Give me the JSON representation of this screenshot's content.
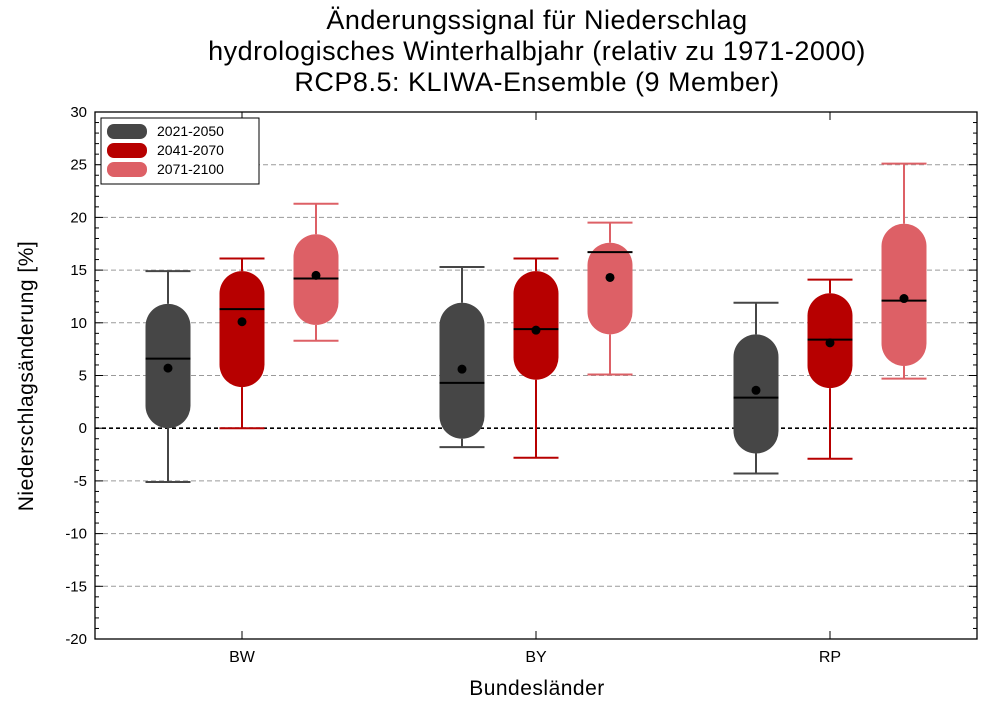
{
  "chart_data": {
    "type": "box",
    "title_lines": [
      "Änderungssignal für Niederschlag",
      "hydrologisches Winterhalbjahr (relativ zu 1971-2000)",
      "RCP8.5: KLIWA-Ensemble (9 Member)"
    ],
    "xlabel": "Bundesländer",
    "ylabel": "Niederschlagsänderung [%]",
    "ylim": [
      -20,
      30
    ],
    "yticks": [
      -20,
      -15,
      -10,
      -5,
      0,
      5,
      10,
      15,
      20,
      25,
      30
    ],
    "ytick_labels": [
      "-20",
      "-15",
      "-10",
      "-5",
      "0",
      "5",
      "10",
      "15",
      "20",
      "25",
      "30"
    ],
    "grid": "horizontal dashed",
    "zero_line": "dashed",
    "legend_position": "top-left",
    "categories": [
      "BW",
      "BY",
      "RP"
    ],
    "series": [
      {
        "name": "2021-2050",
        "color": "#464646",
        "boxes": [
          {
            "min": -5.1,
            "q1": 0.0,
            "median": 6.6,
            "q3": 11.8,
            "max": 14.9,
            "mean": 5.7
          },
          {
            "min": -1.8,
            "q1": -1.0,
            "median": 4.3,
            "q3": 11.9,
            "max": 15.3,
            "mean": 5.6
          },
          {
            "min": -4.3,
            "q1": -2.4,
            "median": 2.9,
            "q3": 8.9,
            "max": 11.9,
            "mean": 3.6
          }
        ]
      },
      {
        "name": "2041-2070",
        "color": "#b70000",
        "boxes": [
          {
            "min": 0.0,
            "q1": 3.9,
            "median": 11.3,
            "q3": 14.9,
            "max": 16.1,
            "mean": 10.1
          },
          {
            "min": -2.8,
            "q1": 4.6,
            "median": 9.4,
            "q3": 14.9,
            "max": 16.1,
            "mean": 9.3
          },
          {
            "min": -2.9,
            "q1": 3.8,
            "median": 8.4,
            "q3": 12.8,
            "max": 14.1,
            "mean": 8.1
          }
        ]
      },
      {
        "name": "2071-2100",
        "color": "#dd6066",
        "boxes": [
          {
            "min": 8.3,
            "q1": 9.8,
            "median": 14.2,
            "q3": 18.4,
            "max": 21.3,
            "mean": 14.5
          },
          {
            "min": 5.1,
            "q1": 8.9,
            "median": 16.7,
            "q3": 17.6,
            "max": 19.5,
            "mean": 14.3
          },
          {
            "min": 4.7,
            "q1": 5.9,
            "median": 12.1,
            "q3": 19.4,
            "max": 25.1,
            "mean": 12.3
          }
        ]
      }
    ]
  }
}
